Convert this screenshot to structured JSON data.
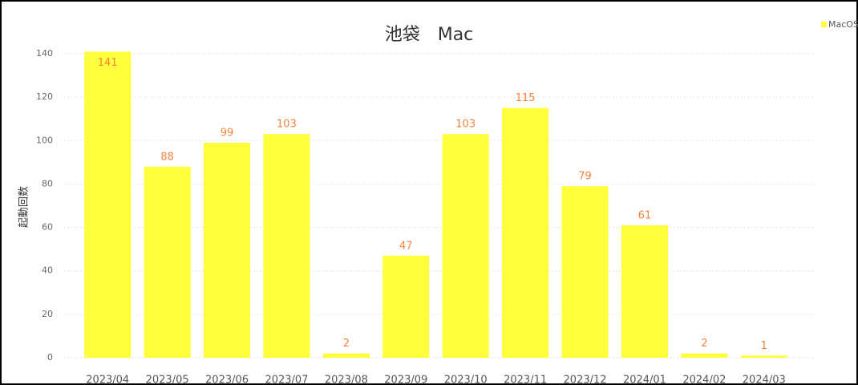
{
  "chart_data": {
    "type": "bar",
    "title": "池袋　Mac",
    "y_label": "起動回数",
    "categories": [
      "2023/04",
      "2023/05",
      "2023/06",
      "2023/07",
      "2023/08",
      "2023/09",
      "2023/10",
      "2023/11",
      "2023/12",
      "2024/01",
      "2024/02",
      "2024/03"
    ],
    "series": [
      {
        "name": "MacOS",
        "color": "#ffff3c",
        "values": [
          141,
          88,
          99,
          103,
          2,
          47,
          103,
          115,
          79,
          61,
          2,
          1
        ]
      }
    ],
    "ylim": [
      0,
      140
    ],
    "yticks": [
      0,
      20,
      40,
      60,
      80,
      100,
      120,
      140
    ],
    "grid": true,
    "legend": "top-right"
  }
}
